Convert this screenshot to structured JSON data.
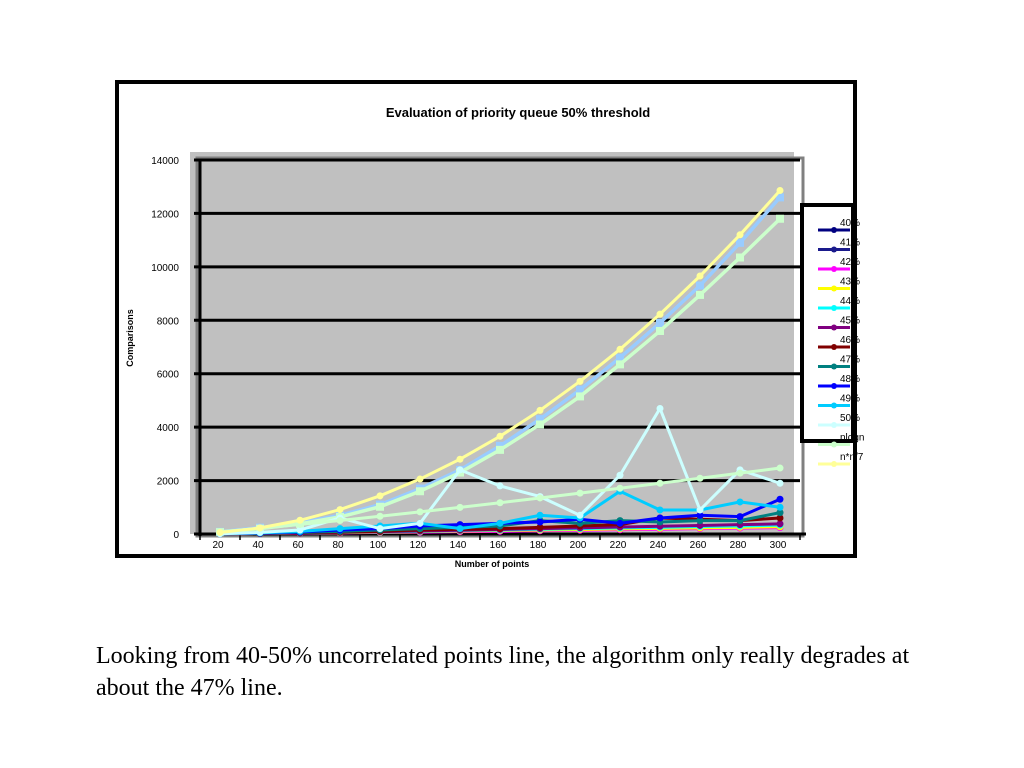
{
  "chart_data": {
    "type": "line",
    "title": "Evaluation of priority queue 50% threshold",
    "xlabel": "Number of points",
    "ylabel": "Comparisons",
    "categories": [
      20,
      40,
      60,
      80,
      100,
      120,
      140,
      160,
      180,
      200,
      220,
      240,
      260,
      280,
      300
    ],
    "ylim": [
      0,
      14000
    ],
    "yticks": [
      0,
      2000,
      4000,
      6000,
      8000,
      10000,
      12000,
      14000
    ],
    "grid": true,
    "legend_position": "right",
    "series": [
      {
        "name": "40%",
        "color": "#000080",
        "values": [
          10,
          20,
          40,
          60,
          80,
          100,
          120,
          140,
          160,
          180,
          200,
          220,
          240,
          260,
          280
        ]
      },
      {
        "name": "41%",
        "color": "#1a1a8c",
        "values": [
          10,
          20,
          40,
          60,
          80,
          100,
          120,
          140,
          160,
          180,
          200,
          220,
          240,
          260,
          280
        ]
      },
      {
        "name": "42%",
        "color": "#ff00ff",
        "values": [
          10,
          20,
          30,
          40,
          60,
          70,
          90,
          100,
          120,
          140,
          160,
          180,
          200,
          220,
          240
        ]
      },
      {
        "name": "43%",
        "color": "#ffff00",
        "values": [
          10,
          20,
          40,
          50,
          70,
          90,
          110,
          130,
          150,
          170,
          190,
          210,
          230,
          250,
          270
        ]
      },
      {
        "name": "44%",
        "color": "#00ffff",
        "values": [
          10,
          20,
          40,
          60,
          80,
          100,
          130,
          150,
          180,
          200,
          230,
          250,
          280,
          300,
          330
        ]
      },
      {
        "name": "45%",
        "color": "#800080",
        "values": [
          10,
          20,
          40,
          60,
          90,
          110,
          140,
          170,
          200,
          230,
          260,
          290,
          320,
          350,
          380
        ]
      },
      {
        "name": "46%",
        "color": "#800000",
        "values": [
          10,
          20,
          40,
          70,
          100,
          150,
          180,
          200,
          250,
          300,
          350,
          600,
          550,
          500,
          600
        ]
      },
      {
        "name": "47%",
        "color": "#008080",
        "values": [
          10,
          30,
          60,
          100,
          150,
          200,
          250,
          300,
          500,
          400,
          500,
          450,
          500,
          500,
          800
        ]
      },
      {
        "name": "48%",
        "color": "#0000ff",
        "values": [
          10,
          30,
          80,
          150,
          200,
          300,
          350,
          400,
          450,
          550,
          400,
          600,
          700,
          650,
          1300
        ]
      },
      {
        "name": "49%",
        "color": "#00ccff",
        "values": [
          10,
          40,
          100,
          200,
          300,
          400,
          200,
          400,
          700,
          600,
          1600,
          900,
          900,
          1200,
          1000
        ]
      },
      {
        "name": "50%",
        "color": "#ccffff",
        "values": [
          10,
          60,
          150,
          600,
          200,
          400,
          2400,
          1800,
          1400,
          700,
          2200,
          4700,
          900,
          2400,
          1900
        ]
      },
      {
        "name": "nlogn",
        "color": "#ccffcc",
        "values": [
          86,
          213,
          354,
          506,
          664,
          829,
          998,
          1171,
          1349,
          1529,
          1712,
          1898,
          2086,
          2277,
          2469
        ]
      },
      {
        "name": "n*n/7",
        "color": "#ffff99",
        "values": [
          57,
          229,
          514,
          914,
          1429,
          2057,
          2800,
          3657,
          4629,
          5714,
          6914,
          8229,
          9657,
          11200,
          12857
        ]
      }
    ],
    "extra_curves": [
      {
        "color": "#99ccff",
        "values": [
          80,
          240,
          420,
          700,
          1100,
          1700,
          2400,
          3300,
          4300,
          5400,
          6600,
          7900,
          9300,
          10900,
          12600
        ]
      },
      {
        "color": "#ccffcc",
        "values": [
          70,
          200,
          380,
          640,
          1020,
          1600,
          2300,
          3150,
          4100,
          5150,
          6350,
          7600,
          8950,
          10350,
          11800
        ]
      }
    ]
  },
  "caption": "Looking from 40-50% uncorrelated points line, the algorithm only really degrades at about the 47% line."
}
